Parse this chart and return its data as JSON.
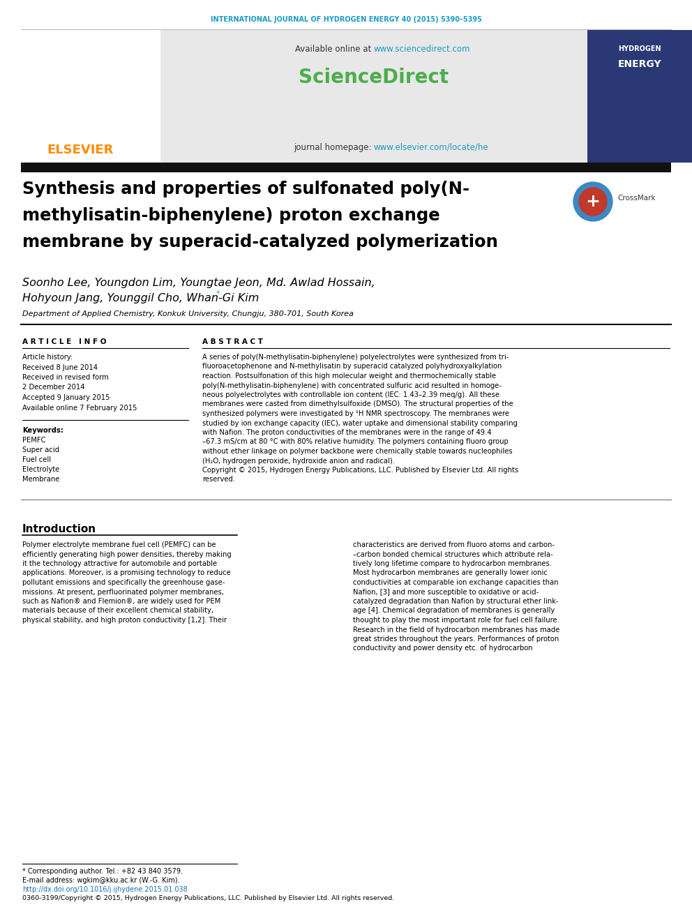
{
  "journal_header": "INTERNATIONAL JOURNAL OF HYDROGEN ENERGY 40 (2015) 5390–5395",
  "journal_header_color": "#1a9bc7",
  "available_online_prefix": "Available online at ",
  "available_online_url": "www.sciencedirect.com",
  "sciencedirect_text": "ScienceDirect",
  "sciencedirect_color": "#4cae4c",
  "journal_homepage_prefix": "journal homepage: ",
  "journal_homepage_url": "www.elsevier.com/locate/he",
  "url_color": "#1a9bc7",
  "elsevier_color": "#ff8c00",
  "header_bg": "#e8e8e8",
  "title_bar_color": "#111111",
  "title_line1": "Synthesis and properties of sulfonated poly(N-",
  "title_line2": "methylisatin-biphenylene) proton exchange",
  "title_line3": "membrane by superacid-catalyzed polymerization",
  "authors_line1": "Soonho Lee, Youngdon Lim, Youngtae Jeon, Md. Awlad Hossain,",
  "authors_line2": "Hohyoun Jang, Younggil Cho, Whan-Gi Kim",
  "affiliation": "Department of Applied Chemistry, Konkuk University, Chungju, 380-701, South Korea",
  "article_info_label": "A R T I C L E   I N F O",
  "abstract_label": "A B S T R A C T",
  "article_history_items": [
    "Article history:",
    "Received 8 June 2014",
    "Received in revised form",
    "2 December 2014",
    "Accepted 9 January 2015",
    "Available online 7 February 2015"
  ],
  "keywords_label": "Keywords:",
  "keywords": [
    "PEMFC",
    "Super acid",
    "Fuel cell",
    "Electrolyte",
    "Membrane"
  ],
  "abstract_lines": [
    "A series of poly(N-methylisatin-biphenylene) polyelectrolytes were synthesized from tri-",
    "fluoroacetophenone and N-methylisatin by superacid catalyzed polyhydroxyalkylation",
    "reaction. Postsulfonation of this high molecular weight and thermochemically stable",
    "poly(N-methylisatin-biphenylene) with concentrated sulfuric acid resulted in homoge-",
    "neous polyelectrolytes with controllable ion content (IEC: 1.43–2.39 meq/g). All these",
    "membranes were casted from dimethylsulfoxide (DMSO). The structural properties of the",
    "synthesized polymers were investigated by ¹H NMR spectroscopy. The membranes were",
    "studied by ion exchange capacity (IEC), water uptake and dimensional stability comparing",
    "with Nafion. The proton conductivities of the membranes were in the range of 49.4",
    "–67.3 mS/cm at 80 °C with 80% relative humidity. The polymers containing fluoro group",
    "without ether linkage on polymer backbone were chemically stable towards nucleophiles",
    "(H₂O, hydrogen peroxide, hydroxide anion and radical).",
    "Copyright © 2015, Hydrogen Energy Publications, LLC. Published by Elsevier Ltd. All rights",
    "reserved."
  ],
  "intro_title": "Introduction",
  "intro_left_lines": [
    "Polymer electrolyte membrane fuel cell (PEMFC) can be",
    "efficiently generating high power densities, thereby making",
    "it the technology attractive for automobile and portable",
    "applications. Moreover, is a promising technology to reduce",
    "pollutant emissions and specifically the greenhouse gase-",
    "missions. At present, perfluorinated polymer membranes,",
    "such as Nafion® and Flemion®, are widely used for PEM",
    "materials because of their excellent chemical stability,",
    "physical stability, and high proton conductivity [1,2]. Their"
  ],
  "intro_right_lines": [
    "characteristics are derived from fluoro atoms and carbon-",
    "–carbon bonded chemical structures which attribute rela-",
    "tively long lifetime compare to hydrocarbon membranes.",
    "Most hydrocarbon membranes are generally lower ionic",
    "conductivities at comparable ion exchange capacities than",
    "Nafion, [3] and more susceptible to oxidative or acid-",
    "catalyzed degradation than Nafion by structural ether link-",
    "age [4]. Chemical degradation of membranes is generally",
    "thought to play the most important role for fuel cell failure.",
    "Research in the field of hydrocarbon membranes has made",
    "great strides throughout the years. Performances of proton",
    "conductivity and power density etc. of hydrocarbon"
  ],
  "footnote_star": "* Corresponding author. Tel.: +82 43 840 3579.",
  "footnote_email": "E-mail address: wgkim@kku.ac.kr (W.-G. Kim).",
  "footnote_doi": "http://dx.doi.org/10.1016/j.ijhydene.2015.01.038",
  "footnote_issn": "0360-3199/Copyright © 2015, Hydrogen Energy Publications, LLC. Published by Elsevier Ltd. All rights reserved.",
  "bg_color": "#ffffff",
  "text_color": "#000000",
  "separator_color": "#000000"
}
